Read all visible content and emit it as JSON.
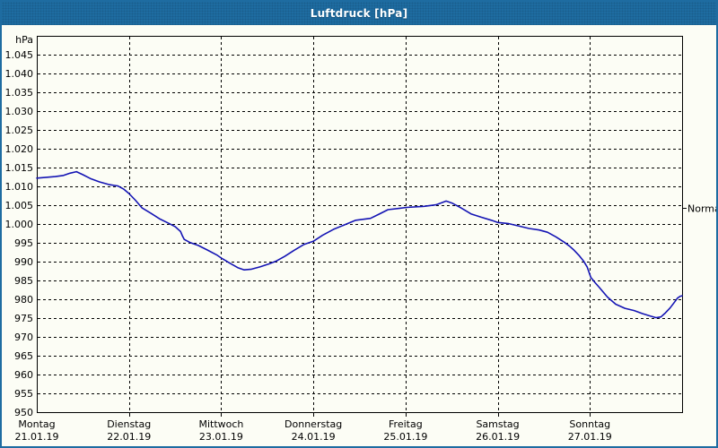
{
  "window": {
    "title": "Luftdruck [hPa]"
  },
  "colors": {
    "titlebar_blue": "#1e6ca1",
    "window_background": "#fcfdf5",
    "grid_color": "#000000",
    "curve_color": "#1414b4",
    "title_text": "#ffffff",
    "label_text": "#000000"
  },
  "chart_data": {
    "type": "line",
    "title": "Luftdruck [hPa]",
    "ylabel": "hPa",
    "ylim": [
      950,
      1050
    ],
    "ytick_min": 950,
    "ytick_max": 1045,
    "ytick_step": 5,
    "grid": "dashed",
    "legend_position": "none",
    "x_axis": {
      "days": [
        {
          "name": "Montag",
          "date": "21.01.19"
        },
        {
          "name": "Dienstag",
          "date": "22.01.19"
        },
        {
          "name": "Mittwoch",
          "date": "23.01.19"
        },
        {
          "name": "Donnerstag",
          "date": "24.01.19"
        },
        {
          "name": "Freitag",
          "date": "25.01.19"
        },
        {
          "name": "Samstag",
          "date": "26.01.19"
        },
        {
          "name": "Sonntag",
          "date": "27.01.19"
        }
      ]
    },
    "normal_marker": {
      "label": "Normal",
      "value": 1004.3
    },
    "series": [
      {
        "name": "Luftdruck",
        "color": "#1414b4",
        "points_day_hpa": [
          [
            0.0,
            1012.2
          ],
          [
            0.1,
            1012.4
          ],
          [
            0.2,
            1012.6
          ],
          [
            0.29,
            1012.9
          ],
          [
            0.36,
            1013.5
          ],
          [
            0.43,
            1013.9
          ],
          [
            0.5,
            1013.1
          ],
          [
            0.58,
            1012.1
          ],
          [
            0.68,
            1011.2
          ],
          [
            0.78,
            1010.5
          ],
          [
            0.88,
            1010.1
          ],
          [
            0.94,
            1009.3
          ],
          [
            1.0,
            1008.1
          ],
          [
            1.07,
            1006.3
          ],
          [
            1.14,
            1004.3
          ],
          [
            1.24,
            1002.8
          ],
          [
            1.33,
            1001.4
          ],
          [
            1.43,
            1000.2
          ],
          [
            1.5,
            999.3
          ],
          [
            1.56,
            998.0
          ],
          [
            1.58,
            996.8
          ],
          [
            1.6,
            995.9
          ],
          [
            1.66,
            995.1
          ],
          [
            1.75,
            994.3
          ],
          [
            1.85,
            993.1
          ],
          [
            1.95,
            991.8
          ],
          [
            2.01,
            990.8
          ],
          [
            2.1,
            989.5
          ],
          [
            2.18,
            988.4
          ],
          [
            2.25,
            987.8
          ],
          [
            2.33,
            988.0
          ],
          [
            2.42,
            988.6
          ],
          [
            2.52,
            989.4
          ],
          [
            2.6,
            990.2
          ],
          [
            2.69,
            991.4
          ],
          [
            2.79,
            993.0
          ],
          [
            2.9,
            994.6
          ],
          [
            3.0,
            995.4
          ],
          [
            3.1,
            997.0
          ],
          [
            3.22,
            998.6
          ],
          [
            3.36,
            1000.0
          ],
          [
            3.46,
            1001.0
          ],
          [
            3.62,
            1001.5
          ],
          [
            3.71,
            1002.6
          ],
          [
            3.81,
            1003.8
          ],
          [
            3.94,
            1004.2
          ],
          [
            4.01,
            1004.4
          ],
          [
            4.2,
            1004.7
          ],
          [
            4.33,
            1005.1
          ],
          [
            4.44,
            1006.1
          ],
          [
            4.51,
            1005.5
          ],
          [
            4.6,
            1004.3
          ],
          [
            4.71,
            1002.7
          ],
          [
            4.82,
            1001.8
          ],
          [
            4.93,
            1001.0
          ],
          [
            5.0,
            1000.4
          ],
          [
            5.12,
            1000.1
          ],
          [
            5.24,
            999.4
          ],
          [
            5.34,
            998.8
          ],
          [
            5.45,
            998.4
          ],
          [
            5.54,
            997.8
          ],
          [
            5.63,
            996.6
          ],
          [
            5.72,
            995.2
          ],
          [
            5.78,
            994.1
          ],
          [
            5.83,
            993.0
          ],
          [
            5.88,
            991.7
          ],
          [
            5.93,
            990.2
          ],
          [
            5.97,
            988.6
          ],
          [
            6.01,
            985.8
          ],
          [
            6.06,
            984.3
          ],
          [
            6.1,
            983.2
          ],
          [
            6.19,
            980.6
          ],
          [
            6.28,
            978.7
          ],
          [
            6.38,
            977.6
          ],
          [
            6.48,
            977.0
          ],
          [
            6.57,
            976.2
          ],
          [
            6.66,
            975.5
          ],
          [
            6.72,
            975.1
          ],
          [
            6.77,
            975.3
          ],
          [
            6.82,
            976.4
          ],
          [
            6.87,
            977.7
          ],
          [
            6.91,
            979.0
          ],
          [
            6.95,
            980.3
          ],
          [
            6.98,
            980.8
          ],
          [
            7.0,
            980.9
          ]
        ]
      }
    ]
  }
}
